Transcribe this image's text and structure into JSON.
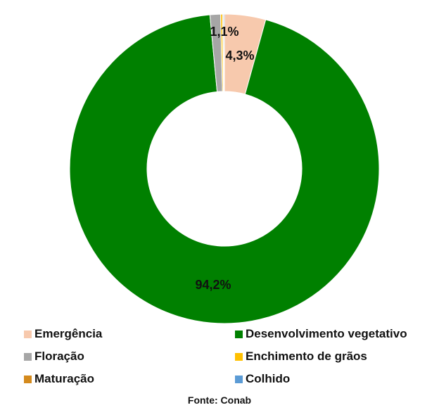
{
  "chart_data": {
    "type": "pie",
    "title": "",
    "categories": [
      "Emergência",
      "Desenvolvimento vegetativo",
      "Floração",
      "Enchimento de grãos",
      "Maturação",
      "Colhido"
    ],
    "values": [
      4.3,
      94.2,
      1.1,
      0.2,
      0.1,
      0.1
    ],
    "colors": [
      "#f7c9ad",
      "#008000",
      "#a6a6a6",
      "#ffc000",
      "#d48a1d",
      "#5b9bd5"
    ],
    "data_labels": [
      "4,3%",
      "94,2%",
      "1,1%",
      null,
      null,
      null
    ],
    "legend_position": "bottom"
  },
  "legend": [
    {
      "label": "Emergência",
      "color": "#f7c9ad"
    },
    {
      "label": "Desenvolvimento vegetativo",
      "color": "#008000"
    },
    {
      "label": "Floração",
      "color": "#a6a6a6"
    },
    {
      "label": "Enchimento de grãos",
      "color": "#ffc000"
    },
    {
      "label": "Maturação",
      "color": "#d48a1d"
    },
    {
      "label": "Colhido",
      "color": "#5b9bd5"
    }
  ],
  "source": "Fonte: Conab"
}
